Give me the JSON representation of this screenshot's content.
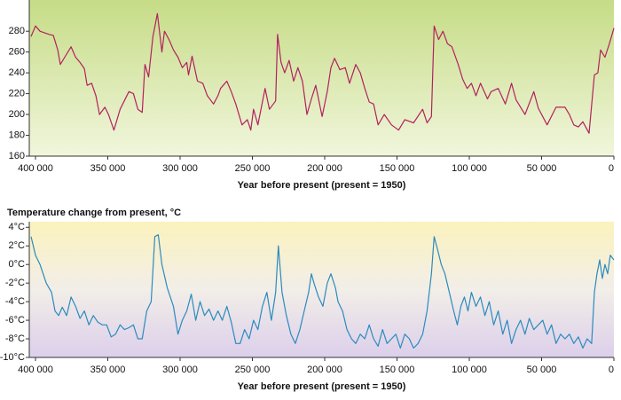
{
  "chart_data": [
    {
      "type": "line",
      "x_label": "Year before present (present = 1950)",
      "color": "#b3205f",
      "xlim": [
        404300,
        0
      ],
      "ylim": [
        160,
        310
      ],
      "xticks": [
        {
          "value": 400000,
          "label": "400 000"
        },
        {
          "value": 350000,
          "label": "350 000"
        },
        {
          "value": 300000,
          "label": "300 000"
        },
        {
          "value": 250000,
          "label": "250 000"
        },
        {
          "value": 200000,
          "label": "200 000"
        },
        {
          "value": 150000,
          "label": "150 000"
        },
        {
          "value": 100000,
          "label": "100 000"
        },
        {
          "value": 50000,
          "label": "50 000"
        },
        0
      ],
      "yticks": [
        160,
        180,
        200,
        220,
        240,
        260,
        280
      ],
      "x": [
        403100,
        400000,
        396900,
        390800,
        387700,
        384600,
        382800,
        378500,
        375400,
        372300,
        369200,
        366200,
        364300,
        361200,
        358200,
        355700,
        352000,
        349500,
        345800,
        341500,
        335400,
        332300,
        329200,
        326200,
        324300,
        321800,
        318800,
        315700,
        312600,
        310800,
        307700,
        304600,
        301500,
        298500,
        295400,
        294200,
        291700,
        288000,
        284300,
        281200,
        276900,
        273800,
        272000,
        267700,
        264600,
        261500,
        257200,
        253500,
        251100,
        249200,
        246200,
        241200,
        238200,
        233900,
        232600,
        230200,
        227700,
        224600,
        221500,
        218500,
        215400,
        212300,
        209200,
        206200,
        201800,
        198200,
        195700,
        193200,
        189500,
        185800,
        182800,
        178500,
        175400,
        172300,
        169200,
        166200,
        163100,
        158800,
        153800,
        148900,
        144600,
        138500,
        132300,
        129200,
        126200,
        124300,
        121200,
        118200,
        115100,
        112000,
        107700,
        104600,
        101500,
        98500,
        95400,
        92300,
        87400,
        84900,
        80000,
        75100,
        70800,
        67700,
        61500,
        55400,
        52300,
        46200,
        40000,
        33800,
        30800,
        27700,
        24600,
        21500,
        17200,
        13500,
        11100,
        9200,
        6200,
        3100,
        0
      ],
      "values": [
        275,
        285,
        280,
        277,
        276,
        262,
        248,
        258,
        265,
        255,
        250,
        244,
        228,
        230,
        218,
        200,
        207,
        200,
        185,
        205,
        222,
        220,
        205,
        202,
        248,
        236,
        275,
        297,
        260,
        280,
        272,
        262,
        255,
        245,
        250,
        238,
        256,
        232,
        230,
        218,
        210,
        218,
        225,
        232,
        222,
        210,
        190,
        195,
        185,
        205,
        190,
        225,
        205,
        213,
        277,
        250,
        240,
        252,
        232,
        245,
        232,
        200,
        215,
        228,
        198,
        222,
        245,
        254,
        243,
        245,
        230,
        248,
        240,
        225,
        212,
        210,
        190,
        200,
        190,
        185,
        195,
        192,
        205,
        192,
        198,
        285,
        272,
        280,
        268,
        265,
        248,
        234,
        225,
        230,
        218,
        230,
        215,
        222,
        225,
        210,
        230,
        214,
        200,
        222,
        206,
        190,
        207,
        207,
        200,
        190,
        188,
        193,
        182,
        238,
        240,
        262,
        255,
        268,
        283
      ]
    },
    {
      "type": "line",
      "title": "Temperature change from present, °C",
      "x_label": "Year before present (present = 1950)",
      "color": "#2b8bbd",
      "xlim": [
        404300,
        0
      ],
      "ylim": [
        -10,
        4.6
      ],
      "xticks": [
        {
          "value": 400000,
          "label": "400 000"
        },
        {
          "value": 350000,
          "label": "350 000"
        },
        {
          "value": 300000,
          "label": "300 000"
        },
        {
          "value": 250000,
          "label": "250 000"
        },
        {
          "value": 200000,
          "label": "200 000"
        },
        {
          "value": 150000,
          "label": "150 000"
        },
        {
          "value": 100000,
          "label": "100 000"
        },
        {
          "value": 50000,
          "label": "50 000"
        },
        0
      ],
      "yticks": [
        {
          "value": 4,
          "label": "4°C"
        },
        {
          "value": 2,
          "label": "2°C"
        },
        {
          "value": 0,
          "label": "0°C"
        },
        {
          "value": -2,
          "label": "-2°C"
        },
        {
          "value": -4,
          "label": "-4°C"
        },
        {
          "value": -6,
          "label": "-6°C"
        },
        {
          "value": -8,
          "label": "-8°C"
        },
        {
          "value": -10,
          "label": "-10°C"
        }
      ],
      "x": [
        403100,
        400000,
        396900,
        392600,
        388900,
        386500,
        384000,
        381500,
        378500,
        375400,
        372300,
        369200,
        366200,
        363100,
        360000,
        356900,
        353800,
        350800,
        347700,
        344600,
        341500,
        338500,
        335400,
        332300,
        329200,
        326200,
        323100,
        320000,
        317500,
        315100,
        312600,
        308900,
        304600,
        301500,
        298500,
        295400,
        292300,
        289200,
        286200,
        283100,
        280000,
        276900,
        273800,
        270800,
        267700,
        264600,
        261500,
        258500,
        255400,
        252300,
        249200,
        246200,
        243100,
        240000,
        236900,
        233900,
        232000,
        229500,
        226500,
        223400,
        220300,
        217200,
        214200,
        211100,
        209200,
        207400,
        204300,
        201200,
        198200,
        195700,
        192600,
        190800,
        187700,
        184600,
        181500,
        178500,
        175400,
        172300,
        169200,
        166200,
        163100,
        160000,
        156900,
        153800,
        150800,
        147700,
        144600,
        141500,
        138500,
        135400,
        132300,
        129200,
        126200,
        124300,
        121800,
        119400,
        116900,
        113800,
        110800,
        108300,
        105800,
        103400,
        100900,
        98500,
        95400,
        92300,
        89200,
        86200,
        83100,
        80000,
        76900,
        73800,
        70800,
        67700,
        64600,
        61500,
        58500,
        55400,
        52300,
        49200,
        46200,
        43100,
        40000,
        36900,
        33800,
        30800,
        27700,
        24600,
        21500,
        18500,
        15400,
        13500,
        11700,
        9800,
        8000,
        6200,
        4300,
        2500,
        0
      ],
      "values": [
        3,
        1,
        0,
        -2,
        -3,
        -5,
        -5.5,
        -4.6,
        -5.5,
        -3.5,
        -4.5,
        -5.8,
        -5,
        -6.5,
        -5.5,
        -6.2,
        -6.5,
        -6.5,
        -7.8,
        -7.5,
        -6.5,
        -7,
        -6.8,
        -6.5,
        -8,
        -8,
        -5,
        -4,
        3,
        3.2,
        0,
        -2.5,
        -4.5,
        -7.5,
        -6,
        -5,
        -3.2,
        -6,
        -4,
        -5.5,
        -4.8,
        -6,
        -5,
        -6,
        -4.5,
        -6.2,
        -8.5,
        -8.5,
        -7,
        -8,
        -6,
        -7,
        -4.5,
        -3,
        -6,
        -3,
        2,
        -3,
        -5.5,
        -7.5,
        -8.5,
        -7,
        -5,
        -3,
        -1,
        -2,
        -3.5,
        -4.5,
        -2,
        -1,
        -2.5,
        -4,
        -5,
        -7,
        -8,
        -8.5,
        -7.5,
        -8,
        -6.5,
        -8,
        -8.8,
        -7,
        -8.5,
        -8,
        -7.5,
        -9,
        -7.5,
        -8,
        -9,
        -8.5,
        -7.5,
        -5,
        -1,
        3,
        1.5,
        0,
        -1,
        -3,
        -5,
        -6.5,
        -4.5,
        -3.5,
        -5,
        -3,
        -4.5,
        -3.5,
        -5.5,
        -4,
        -6.5,
        -5,
        -7.5,
        -6,
        -8.5,
        -7,
        -6,
        -7.5,
        -5.8,
        -7,
        -6.5,
        -6,
        -7.5,
        -6.5,
        -8.5,
        -7.5,
        -8,
        -7.5,
        -8.5,
        -7.8,
        -9,
        -8,
        -8.5,
        -3,
        -1,
        0.5,
        -1.5,
        0,
        -1,
        1,
        0.5
      ]
    }
  ]
}
